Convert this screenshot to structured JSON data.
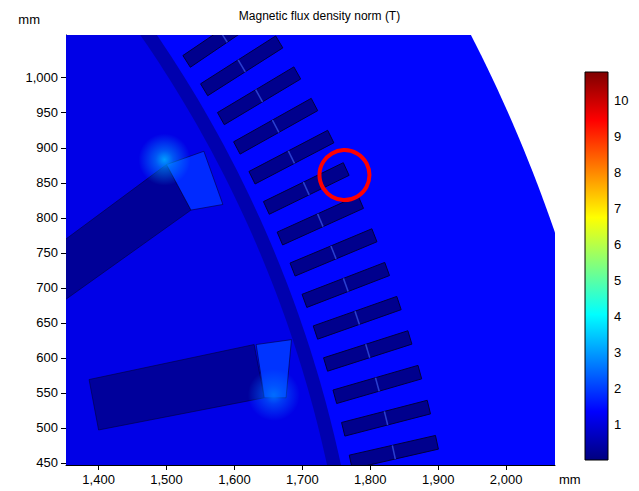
{
  "chart_data": {
    "type": "field_map",
    "title": "Magnetic flux density norm (T)",
    "x_label": "mm",
    "y_label": "mm",
    "xlim": [
      1352,
      2072
    ],
    "ylim": [
      447,
      1061
    ],
    "xticks": [
      1400,
      1500,
      1600,
      1700,
      1800,
      1900,
      2000
    ],
    "yticks": [
      450,
      500,
      550,
      600,
      650,
      700,
      750,
      800,
      850,
      900,
      950,
      1000
    ],
    "colorbar": {
      "range": [
        0,
        10.8
      ],
      "ticks": [
        1,
        2,
        3,
        4,
        5,
        6,
        7,
        8,
        9,
        10
      ]
    },
    "center": [
      92,
      79
    ],
    "rings": [
      {
        "r": 2100,
        "value": 1.4
      },
      {
        "r": 1705,
        "value": 0.5
      },
      {
        "r": 1685,
        "value": 1.1
      }
    ],
    "slots": {
      "angles": [
        33.3,
        31.7,
        30.1,
        28.5,
        26.9,
        25.3,
        23.7,
        22.1,
        20.5,
        18.9,
        17.3,
        15.7,
        14.1,
        12.5
      ],
      "r": [
        1720,
        1850
      ],
      "width": 20,
      "value": 0.15
    },
    "polygons": [
      {
        "points": [
          [
            1351,
            769
          ],
          [
            1500,
            876
          ],
          [
            1536,
            811
          ],
          [
            1351,
            683
          ]
        ],
        "value": 0.25
      },
      {
        "points": [
          [
            1500,
            876
          ],
          [
            1555,
            895
          ],
          [
            1583,
            819
          ],
          [
            1536,
            811
          ]
        ],
        "value": 1.8
      },
      {
        "points": [
          [
            1386,
            569
          ],
          [
            1629,
            619
          ],
          [
            1644,
            543
          ],
          [
            1400,
            497
          ]
        ],
        "value": 0.3
      },
      {
        "points": [
          [
            1632,
            619
          ],
          [
            1684,
            626
          ],
          [
            1676,
            543
          ],
          [
            1644,
            543
          ]
        ],
        "value": 1.9
      }
    ],
    "hot_spots": [
      {
        "x": 1497,
        "y": 883,
        "value": 3.0
      },
      {
        "x": 1658,
        "y": 547,
        "value": 2.5
      }
    ],
    "highlight": {
      "x": 1762,
      "y": 861,
      "color": "#ff0000"
    }
  }
}
